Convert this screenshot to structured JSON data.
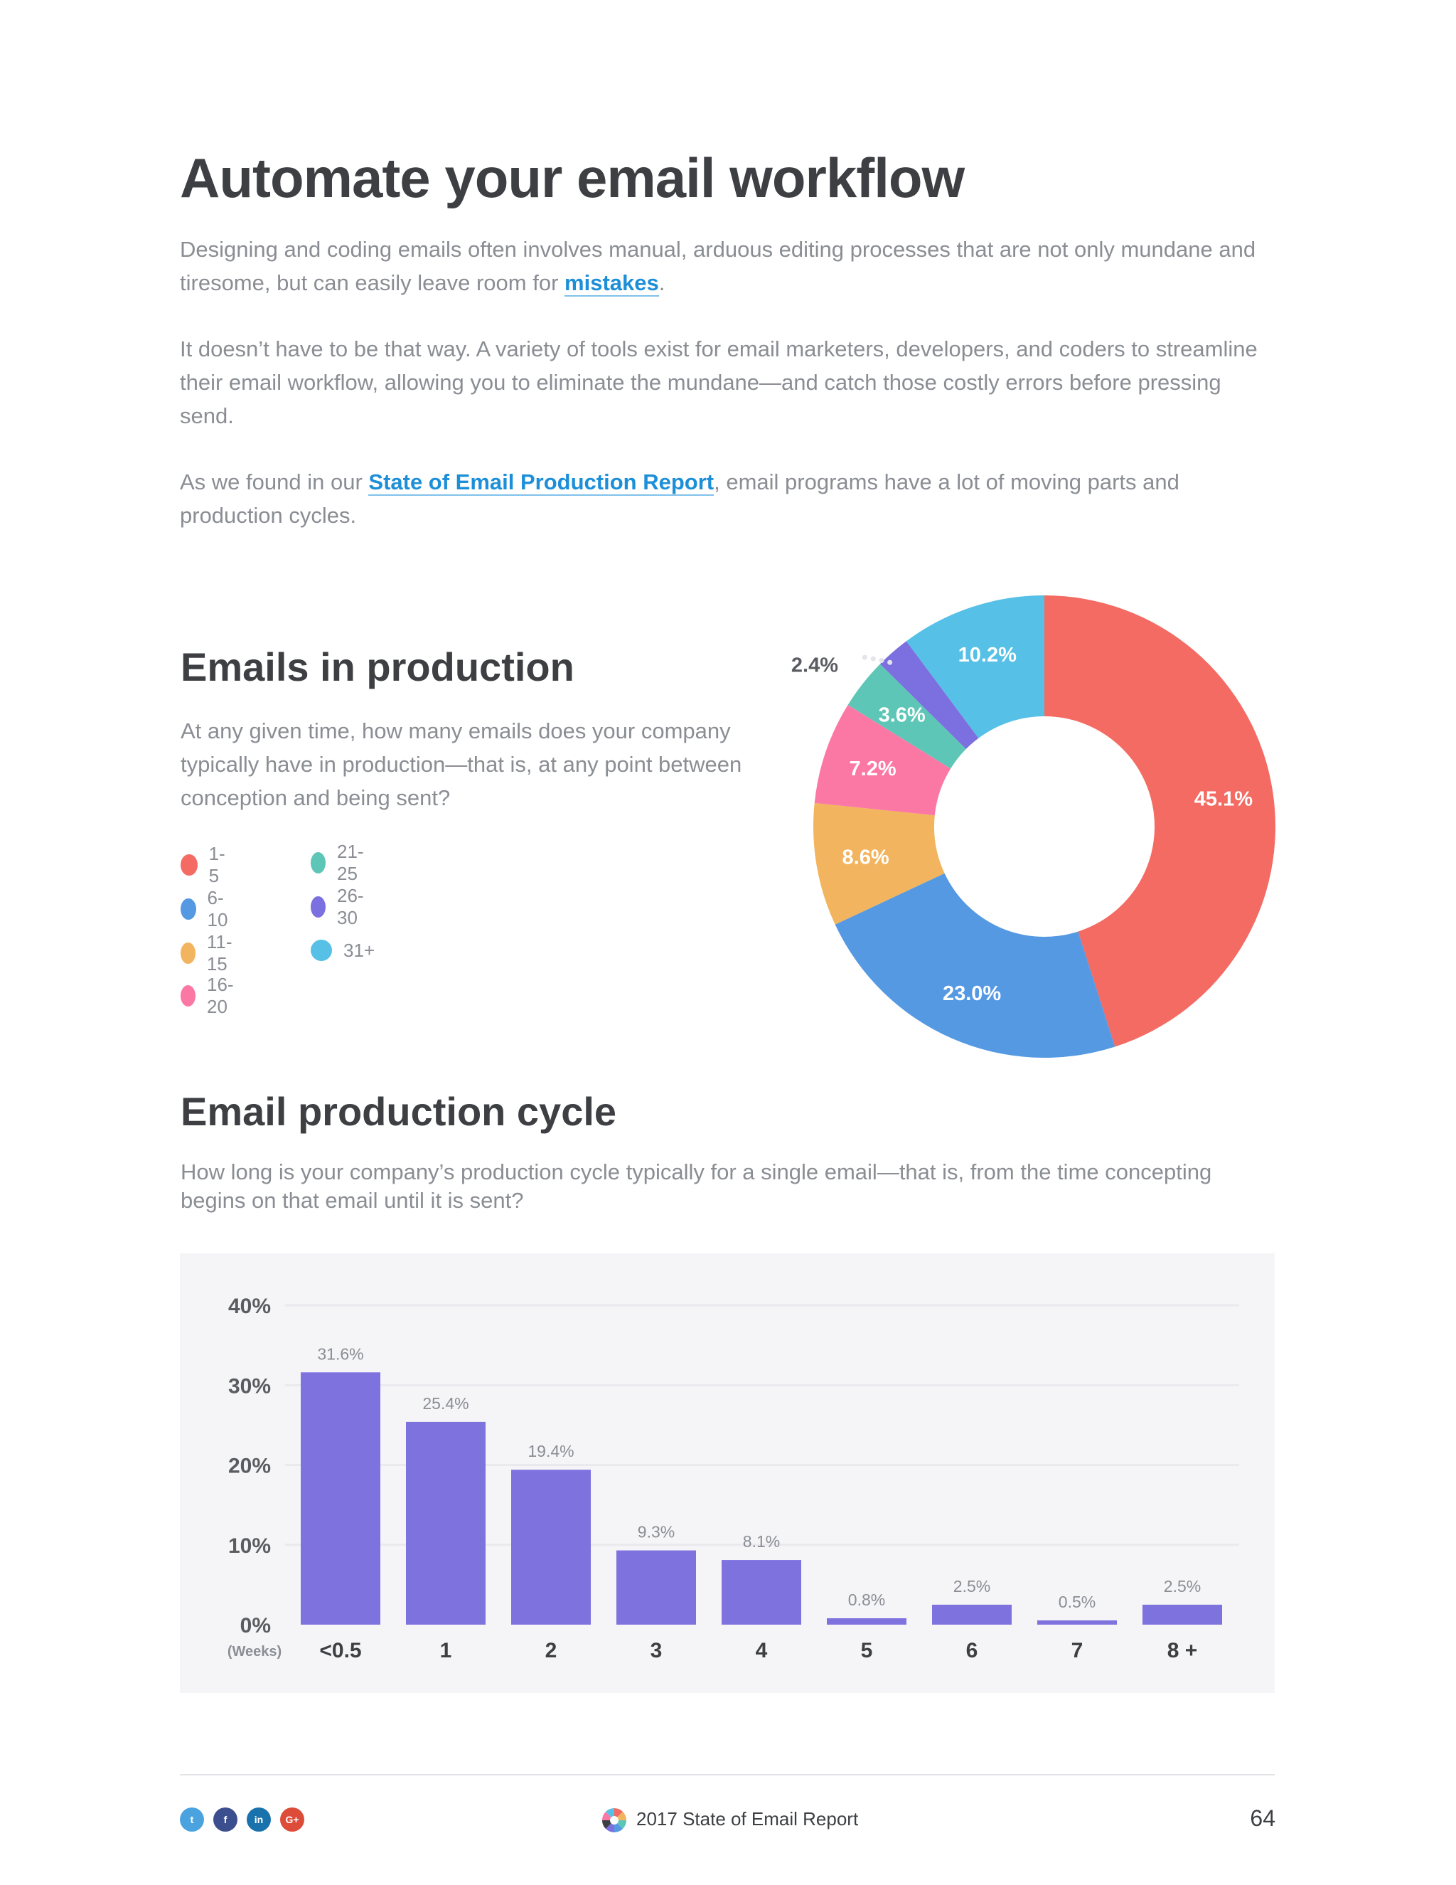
{
  "header": {
    "title": "Automate your email workflow"
  },
  "intro": {
    "p1_text": "Designing and coding emails often involves manual, arduous editing processes that are not only mundane and tiresome, but can easily leave room for ",
    "p1_link": "mistakes",
    "p1_end": ".",
    "p2_text": "It doesn’t have to be that way. A variety of tools exist for email marketers, developers, and coders to streamline their email workflow, allowing you to eliminate the mundane—and catch those costly errors before pressing send.",
    "p3_start": "As we found in our ",
    "p3_link": "State of Email Production Report",
    "p3_end": ", email programs have a lot of moving parts and production cycles."
  },
  "donut_section": {
    "heading": "Emails in production",
    "question": "At any given time, how many emails does your company typically have in production—that is, at any point between conception and being sent?"
  },
  "bar_section": {
    "heading": "Email production cycle",
    "question": "How long is your company’s production cycle typically for a single email—that is, from the time concepting begins on that email until it is sent?"
  },
  "chart_data": [
    {
      "type": "pie",
      "variant": "donut",
      "title": "Emails in production",
      "categories": [
        "1-5",
        "6-10",
        "11-15",
        "16-20",
        "21-25",
        "26-30",
        "31+"
      ],
      "values": [
        45.1,
        23.0,
        8.6,
        7.2,
        3.6,
        2.4,
        10.2
      ],
      "labels": [
        "45.1%",
        "23.0%",
        "8.6%",
        "7.2%",
        "3.6%",
        "2.4%",
        "10.2%"
      ],
      "colors": [
        "#f36b63",
        "#5599e3",
        "#f2b45e",
        "#fb78a4",
        "#5ec6b6",
        "#7c6fdf",
        "#56c0e6"
      ],
      "legend": "left"
    },
    {
      "type": "bar",
      "title": "Email production cycle",
      "categories": [
        "<0.5",
        "1",
        "2",
        "3",
        "4",
        "5",
        "6",
        "7",
        "8 +"
      ],
      "values": [
        31.6,
        25.4,
        19.4,
        9.3,
        8.1,
        0.8,
        2.5,
        0.5,
        2.5
      ],
      "labels": [
        "31.6%",
        "25.4%",
        "19.4%",
        "9.3%",
        "8.1%",
        "0.8%",
        "2.5%",
        "0.5%",
        "2.5%"
      ],
      "xlabel": "(Weeks)",
      "ylabel": "",
      "ylim": [
        0,
        40
      ],
      "yticks": [
        "0%",
        "10%",
        "20%",
        "30%",
        "40%"
      ],
      "color": "#7e72df",
      "grid": true
    }
  ],
  "footer": {
    "social": [
      {
        "name": "twitter",
        "glyph": "t",
        "color": "#4aa3df"
      },
      {
        "name": "facebook",
        "glyph": "f",
        "color": "#3b4f8f"
      },
      {
        "name": "linkedin",
        "glyph": "in",
        "color": "#1a72ad"
      },
      {
        "name": "google-plus",
        "glyph": "G+",
        "color": "#dd4b39"
      }
    ],
    "title": "2017 State of Email Report",
    "page_number": "64"
  }
}
